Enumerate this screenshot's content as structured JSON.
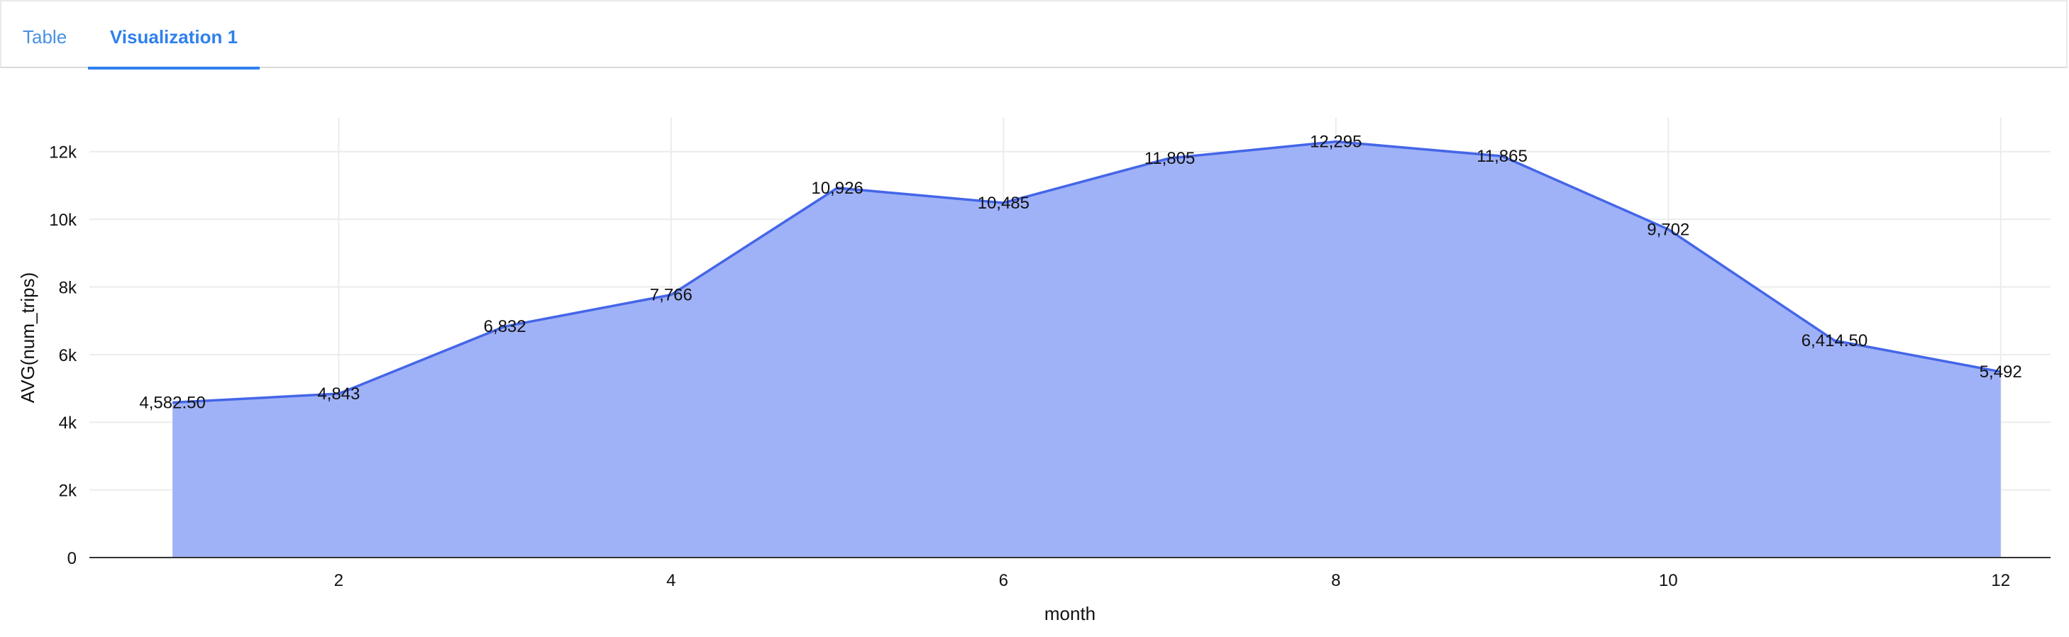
{
  "tabs": [
    {
      "label": "Table",
      "active": false
    },
    {
      "label": "Visualization 1",
      "active": true
    }
  ],
  "colors": {
    "accent": "#2f80ed",
    "area_fill": "#a0b2f7",
    "line": "#4466e8",
    "grid": "#ececec",
    "axis": "#333333",
    "text": "#111111"
  },
  "chart_data": {
    "type": "area",
    "xlabel": "month",
    "ylabel": "AVG(num_trips)",
    "x": [
      1,
      2,
      3,
      4,
      5,
      6,
      7,
      8,
      9,
      10,
      11,
      12
    ],
    "series": [
      {
        "values": [
          4582.5,
          4843,
          6832,
          7766,
          10926,
          10485,
          11805,
          12295,
          11865,
          9702,
          6414.5,
          5492
        ],
        "data_labels": [
          "4,582.50",
          "4,843",
          "6,832",
          "7,766",
          "10,926",
          "10,485",
          "11,805",
          "12,295",
          "11,865",
          "9,702",
          "6,414.50",
          "5,492"
        ]
      }
    ],
    "x_ticks": [
      2,
      4,
      6,
      8,
      10,
      12
    ],
    "x_tick_labels": [
      "2",
      "4",
      "6",
      "8",
      "10",
      "12"
    ],
    "y_ticks": [
      0,
      2000,
      4000,
      6000,
      8000,
      10000,
      12000
    ],
    "y_tick_labels": [
      "0",
      "2k",
      "4k",
      "6k",
      "8k",
      "10k",
      "12k"
    ],
    "xlim": [
      0.5,
      12.3
    ],
    "ylim": [
      0,
      13000
    ],
    "grid": true,
    "legend": "none"
  }
}
